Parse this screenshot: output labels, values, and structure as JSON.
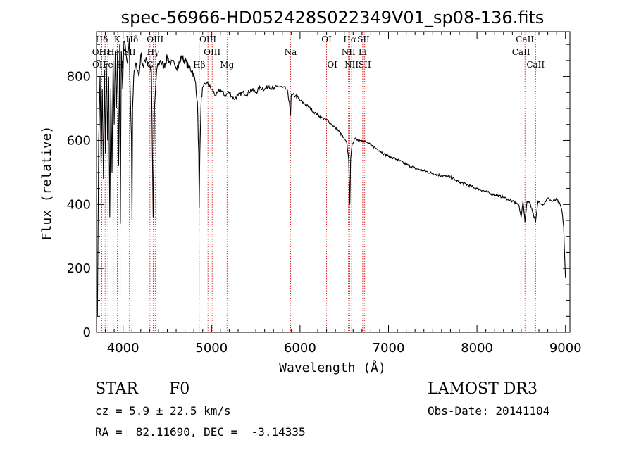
{
  "chart_data": {
    "type": "line",
    "title": "spec-56966-HD052428S022349V01_sp08-136.fits",
    "xlabel": "Wavelength (Å)",
    "ylabel": "Flux (relative)",
    "xlim": [
      3700,
      9050
    ],
    "ylim": [
      0,
      940
    ],
    "xticks": [
      4000,
      5000,
      6000,
      7000,
      8000,
      9000
    ],
    "yticks": [
      0,
      200,
      400,
      600,
      800
    ],
    "spectrum": [
      [
        3700,
        160
      ],
      [
        3710,
        50
      ],
      [
        3725,
        600
      ],
      [
        3740,
        800
      ],
      [
        3752,
        520
      ],
      [
        3765,
        760
      ],
      [
        3778,
        480
      ],
      [
        3790,
        820
      ],
      [
        3800,
        560
      ],
      [
        3812,
        840
      ],
      [
        3825,
        600
      ],
      [
        3838,
        800
      ],
      [
        3850,
        360
      ],
      [
        3862,
        760
      ],
      [
        3875,
        500
      ],
      [
        3888,
        850
      ],
      [
        3900,
        650
      ],
      [
        3912,
        880
      ],
      [
        3925,
        700
      ],
      [
        3938,
        880
      ],
      [
        3950,
        520
      ],
      [
        3962,
        900
      ],
      [
        3970,
        340
      ],
      [
        3980,
        880
      ],
      [
        3995,
        760
      ],
      [
        4010,
        910
      ],
      [
        4030,
        880
      ],
      [
        4050,
        840
      ],
      [
        4070,
        920
      ],
      [
        4085,
        700
      ],
      [
        4095,
        610
      ],
      [
        4101,
        350
      ],
      [
        4108,
        700
      ],
      [
        4120,
        800
      ],
      [
        4150,
        840
      ],
      [
        4180,
        800
      ],
      [
        4200,
        870
      ],
      [
        4230,
        830
      ],
      [
        4260,
        860
      ],
      [
        4290,
        840
      ],
      [
        4320,
        820
      ],
      [
        4340,
        360
      ],
      [
        4355,
        700
      ],
      [
        4380,
        820
      ],
      [
        4420,
        850
      ],
      [
        4460,
        830
      ],
      [
        4500,
        860
      ],
      [
        4540,
        840
      ],
      [
        4580,
        840
      ],
      [
        4620,
        830
      ],
      [
        4660,
        860
      ],
      [
        4700,
        850
      ],
      [
        4740,
        830
      ],
      [
        4780,
        820
      ],
      [
        4820,
        780
      ],
      [
        4840,
        720
      ],
      [
        4855,
        560
      ],
      [
        4861,
        390
      ],
      [
        4868,
        560
      ],
      [
        4885,
        740
      ],
      [
        4910,
        770
      ],
      [
        4950,
        780
      ],
      [
        5000,
        760
      ],
      [
        5050,
        740
      ],
      [
        5100,
        760
      ],
      [
        5150,
        740
      ],
      [
        5200,
        750
      ],
      [
        5250,
        730
      ],
      [
        5300,
        740
      ],
      [
        5350,
        750
      ],
      [
        5400,
        745
      ],
      [
        5450,
        760
      ],
      [
        5500,
        750
      ],
      [
        5550,
        765
      ],
      [
        5600,
        760
      ],
      [
        5650,
        770
      ],
      [
        5700,
        760
      ],
      [
        5750,
        770
      ],
      [
        5800,
        765
      ],
      [
        5850,
        760
      ],
      [
        5880,
        720
      ],
      [
        5893,
        680
      ],
      [
        5900,
        740
      ],
      [
        5950,
        740
      ],
      [
        6000,
        725
      ],
      [
        6050,
        715
      ],
      [
        6100,
        705
      ],
      [
        6150,
        690
      ],
      [
        6200,
        680
      ],
      [
        6250,
        670
      ],
      [
        6300,
        665
      ],
      [
        6350,
        652
      ],
      [
        6400,
        640
      ],
      [
        6450,
        625
      ],
      [
        6500,
        605
      ],
      [
        6530,
        590
      ],
      [
        6550,
        540
      ],
      [
        6563,
        400
      ],
      [
        6572,
        540
      ],
      [
        6590,
        590
      ],
      [
        6620,
        605
      ],
      [
        6650,
        603
      ],
      [
        6700,
        600
      ],
      [
        6750,
        595
      ],
      [
        6800,
        585
      ],
      [
        6850,
        577
      ],
      [
        6900,
        568
      ],
      [
        6950,
        558
      ],
      [
        7000,
        550
      ],
      [
        7100,
        540
      ],
      [
        7200,
        525
      ],
      [
        7300,
        513
      ],
      [
        7400,
        505
      ],
      [
        7500,
        497
      ],
      [
        7600,
        490
      ],
      [
        7700,
        485
      ],
      [
        7800,
        470
      ],
      [
        7900,
        460
      ],
      [
        8000,
        450
      ],
      [
        8100,
        440
      ],
      [
        8200,
        430
      ],
      [
        8300,
        422
      ],
      [
        8400,
        410
      ],
      [
        8470,
        400
      ],
      [
        8498,
        360
      ],
      [
        8520,
        410
      ],
      [
        8542,
        345
      ],
      [
        8565,
        410
      ],
      [
        8600,
        405
      ],
      [
        8662,
        345
      ],
      [
        8690,
        410
      ],
      [
        8750,
        400
      ],
      [
        8800,
        420
      ],
      [
        8850,
        410
      ],
      [
        8900,
        415
      ],
      [
        8940,
        400
      ],
      [
        8960,
        380
      ],
      [
        8980,
        330
      ],
      [
        8990,
        240
      ],
      [
        9000,
        170
      ]
    ],
    "lines": [
      {
        "label": "Hδ",
        "x": 3760,
        "row": 0
      },
      {
        "label": "OII",
        "x": 3727,
        "row": 1
      },
      {
        "label": "OII",
        "x": 3729,
        "row": 2
      },
      {
        "label": "Hε",
        "x": 3797,
        "row": 1
      },
      {
        "label": "Fe",
        "x": 3829,
        "row": 2
      },
      {
        "label": "K",
        "x": 3934,
        "row": 0
      },
      {
        "label": "H",
        "x": 3968,
        "row": 2
      },
      {
        "label": "He",
        "x": 3889,
        "row": 1
      },
      {
        "label": "Hδ",
        "x": 4101,
        "row": 0
      },
      {
        "label": "SII",
        "x": 4072,
        "row": 1
      },
      {
        "label": "OIII",
        "x": 4363,
        "row": 0
      },
      {
        "label": "Hγ",
        "x": 4340,
        "row": 1
      },
      {
        "label": "G",
        "x": 4304,
        "row": 2
      },
      {
        "label": "OIII",
        "x": 4959,
        "row": 0
      },
      {
        "label": "OIII",
        "x": 5007,
        "row": 1
      },
      {
        "label": "Hβ",
        "x": 4861,
        "row": 2
      },
      {
        "label": "Mg",
        "x": 5175,
        "row": 2
      },
      {
        "label": "Na",
        "x": 5893,
        "row": 1
      },
      {
        "label": "OI",
        "x": 6300,
        "row": 0
      },
      {
        "label": "OI",
        "x": 6364,
        "row": 2
      },
      {
        "label": "Hα",
        "x": 6563,
        "row": 0
      },
      {
        "label": "SII",
        "x": 6717,
        "row": 0
      },
      {
        "label": "NII",
        "x": 6548,
        "row": 1
      },
      {
        "label": "Li",
        "x": 6708,
        "row": 1
      },
      {
        "label": "NII",
        "x": 6583,
        "row": 2
      },
      {
        "label": "SII",
        "x": 6731,
        "row": 2
      },
      {
        "label": "CaII",
        "x": 8542,
        "row": 0
      },
      {
        "label": "CaII",
        "x": 8498,
        "row": 1
      },
      {
        "label": "CaII",
        "x": 8662,
        "row": 2
      }
    ]
  },
  "info": {
    "type_label": "STAR",
    "subclass": "F0",
    "survey": "LAMOST DR3",
    "cz": "cz = 5.9 ± 22.5 km/s",
    "obs_date": "Obs-Date: 20141104",
    "radec": "RA =  82.11690, DEC =  -3.14335"
  },
  "colors": {
    "line_marker": "#cc0000",
    "spectrum": "#000000"
  }
}
